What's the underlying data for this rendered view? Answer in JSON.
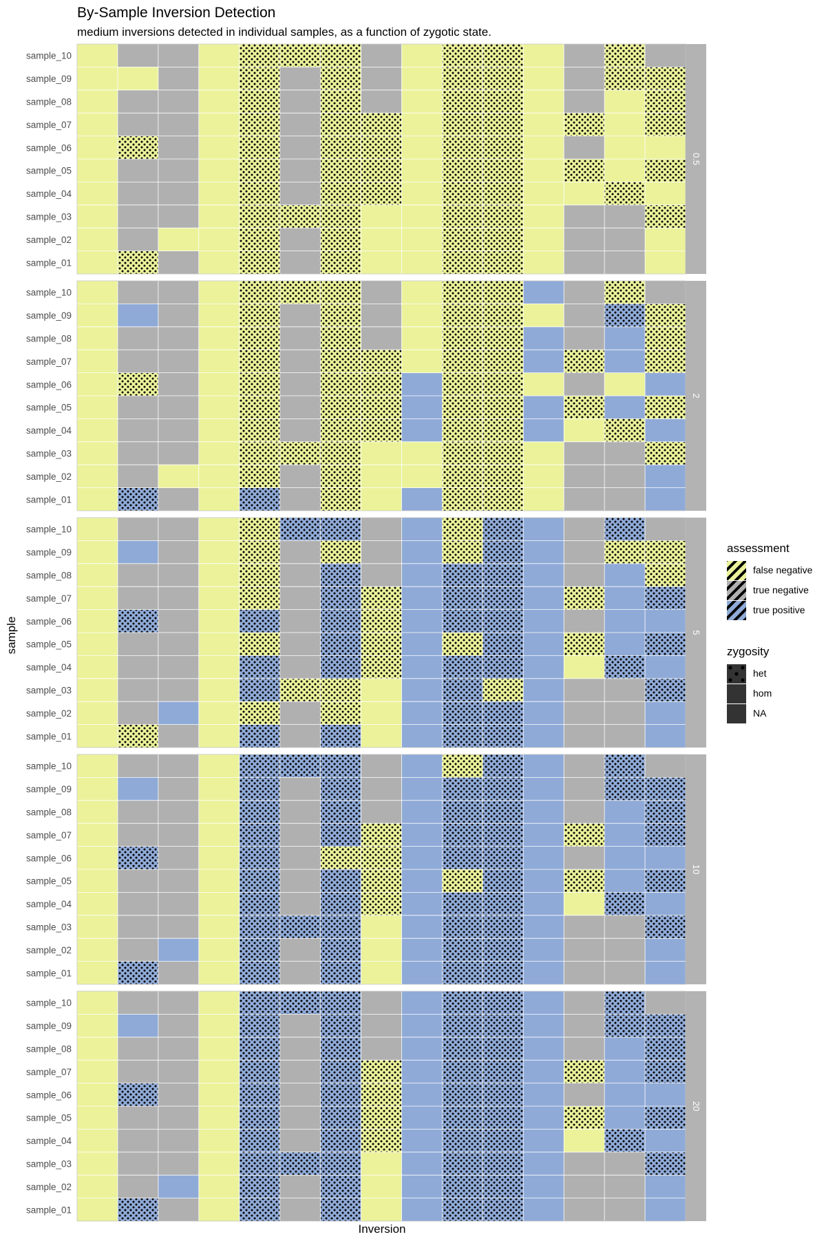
{
  "chart_data": {
    "type": "heatmap",
    "title": "By-Sample Inversion Detection",
    "subtitle": "medium inversions detected in individual samples, as a function of zygotic state.",
    "xlabel": "Inversion",
    "ylabel": "sample",
    "samples": [
      "sample_01",
      "sample_02",
      "sample_03",
      "sample_04",
      "sample_05",
      "sample_06",
      "sample_07",
      "sample_08",
      "sample_09",
      "sample_10"
    ],
    "n_inversions": 15,
    "facets": [
      "0.5",
      "2",
      "5",
      "10",
      "20"
    ],
    "cell_code": "one string per facet; rows listed sample_10 down to sample_01; per cell: first char assessment (F = false negative, N = true negative, P = true positive), second char zygosity (h = het dotted, o = hom solid)",
    "grids": [
      [
        "Fo No No Fo Fh Fh Fh No Fo Fh Fh Fo No Fh No",
        "Fo Fo No Fo Fh No Fh No Fo Fh Fh Fo No Fh Fh",
        "Fo No No Fo Fh No Fh No Fo Fh Fh Fo No Fo Fh",
        "Fo No No Fo Fh No Fh Fh Fo Fh Fh Fo Fh Fo Fh",
        "Fo Fh No Fo Fh No Fh Fh Fo Fh Fh Fo No Fo Fo",
        "Fo No No Fo Fh No Fh Fh Fo Fh Fh Fo Fh Fo Fh",
        "Fo No No Fo Fh No Fh Fh Fo Fh Fh Fo Fo Fh Fo",
        "Fo No No Fo Fh Fh Fh Fo Fo Fh Fh Fo No No Fh",
        "Fo No Fo Fo Fh No Fh Fo Fo Fh Fh Fo No No Fo",
        "Fo Fh No Fo Fh No Fh Fo Fo Fh Fh Fo No No Fo"
      ],
      [
        "Fo No No Fo Fh Fh Fh No Fo Fh Fh Po No Fh No",
        "Fo Po No Fo Fh No Fh No Fo Fh Fh Fo No Ph Fh",
        "Fo No No Fo Fh No Fh No Fo Fh Fh Po No Po Fh",
        "Fo No No Fo Fh No Fh Fh Fo Fh Fh Po Fh Po Fh",
        "Fo Fh No Fo Fh No Fh Fh Po Fh Fh Fo No Fo Po",
        "Fo No No Fo Fh No Fh Fh Po Fh Fh Po Fh Po Fh",
        "Fo No No Fo Fh No Fh Fh Po Fh Fh Po Fo Fh Po",
        "Fo No No Fo Fh Fh Fh Fo Fo Fh Fh Fo No No Fh",
        "Fo No Fo Fo Fh No Fh Fo Fo Fh Fh Fo No No Po",
        "Fo Ph No Fo Ph No Fh Fo Po Fh Fh Fo No No Po"
      ],
      [
        "Fo No No Fo Fh Ph Ph No Po Fh Ph Po No Ph No",
        "Fo Po No Fo Fh No Fh No Po Fh Ph Po No Fh Fh",
        "Fo No No Fo Fh No Ph No Po Ph Ph Po No Po Fh",
        "Fo No No Fo Fh No Ph Fh Po Ph Ph Po Fh Po Ph",
        "Fo Ph No Fo Ph No Ph Fh Po Ph Ph Po No Po Po",
        "Fo No No Fo Fh No Ph Fh Po Fh Ph Po Fh Po Ph",
        "Fo No No Fo Ph No Ph Fh Po Ph Ph Po Fo Ph Po",
        "Fo No No Fo Ph Fh Fh Fo Po Ph Fh Po No No Ph",
        "Fo No Po Fo Fh No Fh Fo Po Ph Ph Po No No Po",
        "Fo Fh No Fo Ph No Ph Fo Po Ph Ph Po No No Po"
      ],
      [
        "Fo No No Fo Ph Ph Ph No Po Fh Ph Po No Ph No",
        "Fo Po No Fo Ph No Ph No Po Ph Ph Po No Ph Ph",
        "Fo No No Fo Ph No Ph No Po Ph Ph Po No Po Ph",
        "Fo No No Fo Ph No Ph Fh Po Ph Ph Po Fh Po Ph",
        "Fo Ph No Fo Ph No Fh Fh Po Ph Ph Po No Po Po",
        "Fo No No Fo Ph No Ph Fh Po Fh Ph Po Fh Po Ph",
        "Fo No No Fo Ph No Ph Fh Po Ph Ph Po Fo Ph Po",
        "Fo No No Fo Ph Ph Ph Fo Po Ph Ph Po No No Ph",
        "Fo No Po Fo Ph No Ph Fo Po Ph Ph Po No No Po",
        "Fo Ph No Fo Ph No Ph Fo Po Ph Ph Po No No Po"
      ],
      [
        "Fo No No Fo Ph Ph Ph No Po Ph Ph Po No Ph No",
        "Fo Po No Fo Ph No Ph No Po Ph Ph Po No Ph Ph",
        "Fo No No Fo Ph No Ph No Po Ph Ph Po No Po Ph",
        "Fo No No Fo Ph No Ph Fh Po Ph Ph Po Fh Po Ph",
        "Fo Ph No Fo Ph No Ph Fh Po Ph Ph Po No Po Po",
        "Fo No No Fo Ph No Ph Fh Po Ph Ph Po Fh Po Ph",
        "Fo No No Fo Ph No Ph Fh Po Ph Ph Po Fo Ph Po",
        "Fo No No Fo Ph Ph Ph Fo Po Ph Ph Po No No Ph",
        "Fo No Po Fo Ph No Ph Fo Po Ph Ph Po No No Po",
        "Fo Ph No Fo Ph No Ph Fo Po Ph Ph Po No No Po"
      ]
    ],
    "legend_assessment": {
      "title": "assessment",
      "items": [
        {
          "key": "F",
          "label": "false negative",
          "color": "#ebf29a"
        },
        {
          "key": "N",
          "label": "true negative",
          "color": "#b0b0b0"
        },
        {
          "key": "P",
          "label": "true positive",
          "color": "#8faad7"
        }
      ]
    },
    "legend_zygosity": {
      "title": "zygosity",
      "items": [
        {
          "key": "h",
          "label": "het"
        },
        {
          "key": "o",
          "label": "hom"
        },
        {
          "key": "na",
          "label": "NA"
        }
      ]
    },
    "colors": {
      "panel_bg": "#ebebeb",
      "strip_bg": "#b3b3b3",
      "strip_text": "#ffffff",
      "grid_line": "#ffffff",
      "tick_text": "#4d4d4d",
      "dark_key": "#333333"
    }
  }
}
